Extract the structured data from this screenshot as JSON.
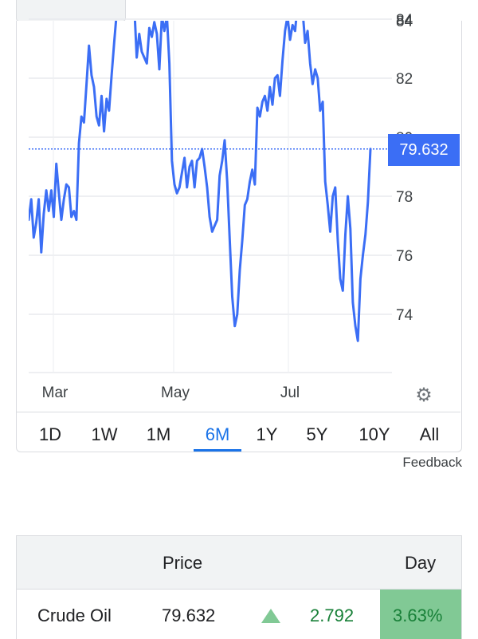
{
  "chart_data": {
    "type": "line",
    "title": "",
    "xlabel": "",
    "ylabel": "",
    "x_ticks": [
      "Mar",
      "May",
      "Jul"
    ],
    "y_ticks": [
      74,
      76,
      78,
      80,
      82,
      84
    ],
    "ylim": [
      72,
      84.8
    ],
    "grid": true,
    "series": [
      {
        "name": "",
        "values": [
          77.2,
          77.9,
          76.6,
          77.1,
          77.9,
          76.1,
          77.4,
          78.2,
          77.5,
          78.2,
          77.3,
          79.1,
          78.1,
          77.2,
          77.9,
          78.4,
          78.3,
          77.3,
          77.5,
          77.2,
          79.8,
          80.7,
          80.5,
          81.8,
          83.1,
          82.1,
          81.7,
          80.7,
          80.4,
          81.4,
          80.2,
          81.3,
          80.9,
          82.1,
          83.2,
          84.2,
          84.8,
          84.9,
          85.5,
          84.6,
          84.9,
          84.9,
          84.5,
          82.7,
          83.5,
          82.9,
          82.7,
          82.5,
          83.7,
          83.4,
          83.9,
          83.5,
          82.3,
          84.1,
          83.6,
          84.1,
          82.5,
          79.2,
          78.4,
          78.1,
          78.3,
          78.8,
          79.3,
          78.3,
          79.0,
          79.2,
          78.3,
          79.2,
          79.3,
          79.6,
          79.0,
          78.3,
          77.3,
          76.8,
          77.0,
          77.2,
          78.7,
          79.2,
          79.9,
          78.5,
          76.5,
          74.6,
          73.6,
          74.0,
          75.5,
          76.5,
          77.7,
          77.9,
          78.5,
          78.9,
          78.4,
          81.0,
          80.7,
          81.2,
          81.4,
          80.9,
          81.7,
          81.1,
          82.0,
          82.1,
          81.4,
          82.6,
          83.6,
          84.1,
          83.3,
          83.8,
          83.6,
          84.5,
          84.7,
          84.3,
          83.2,
          83.6,
          82.5,
          81.8,
          82.3,
          82.0,
          80.9,
          81.2,
          78.5,
          77.7,
          76.8,
          78.0,
          78.3,
          76.5,
          75.2,
          74.8,
          76.7,
          78.0,
          76.9,
          74.4,
          73.6,
          73.1,
          75.2,
          76.0,
          76.7,
          77.8,
          79.6
        ],
        "last_value": "79.632"
      }
    ]
  },
  "chart": {
    "current_price": "79.632",
    "partial_top_label": "84",
    "partial_80_label": "80",
    "line_color": "#3b6ef5"
  },
  "ranges": [
    "1D",
    "1W",
    "1M",
    "6M",
    "1Y",
    "5Y",
    "10Y",
    "All"
  ],
  "active_range": "6M",
  "feedback": "Feedback",
  "table": {
    "headers": {
      "price": "Price",
      "day": "Day"
    },
    "row": {
      "name": "Crude Oil",
      "price": "79.632",
      "change": "2.792",
      "day": "3.63%"
    }
  },
  "icons": {
    "settings": "gear-icon",
    "change": "up-arrow-icon"
  },
  "colors": {
    "accent": "#1a73e8",
    "positive": "#81c995",
    "positive_text": "#188038"
  }
}
